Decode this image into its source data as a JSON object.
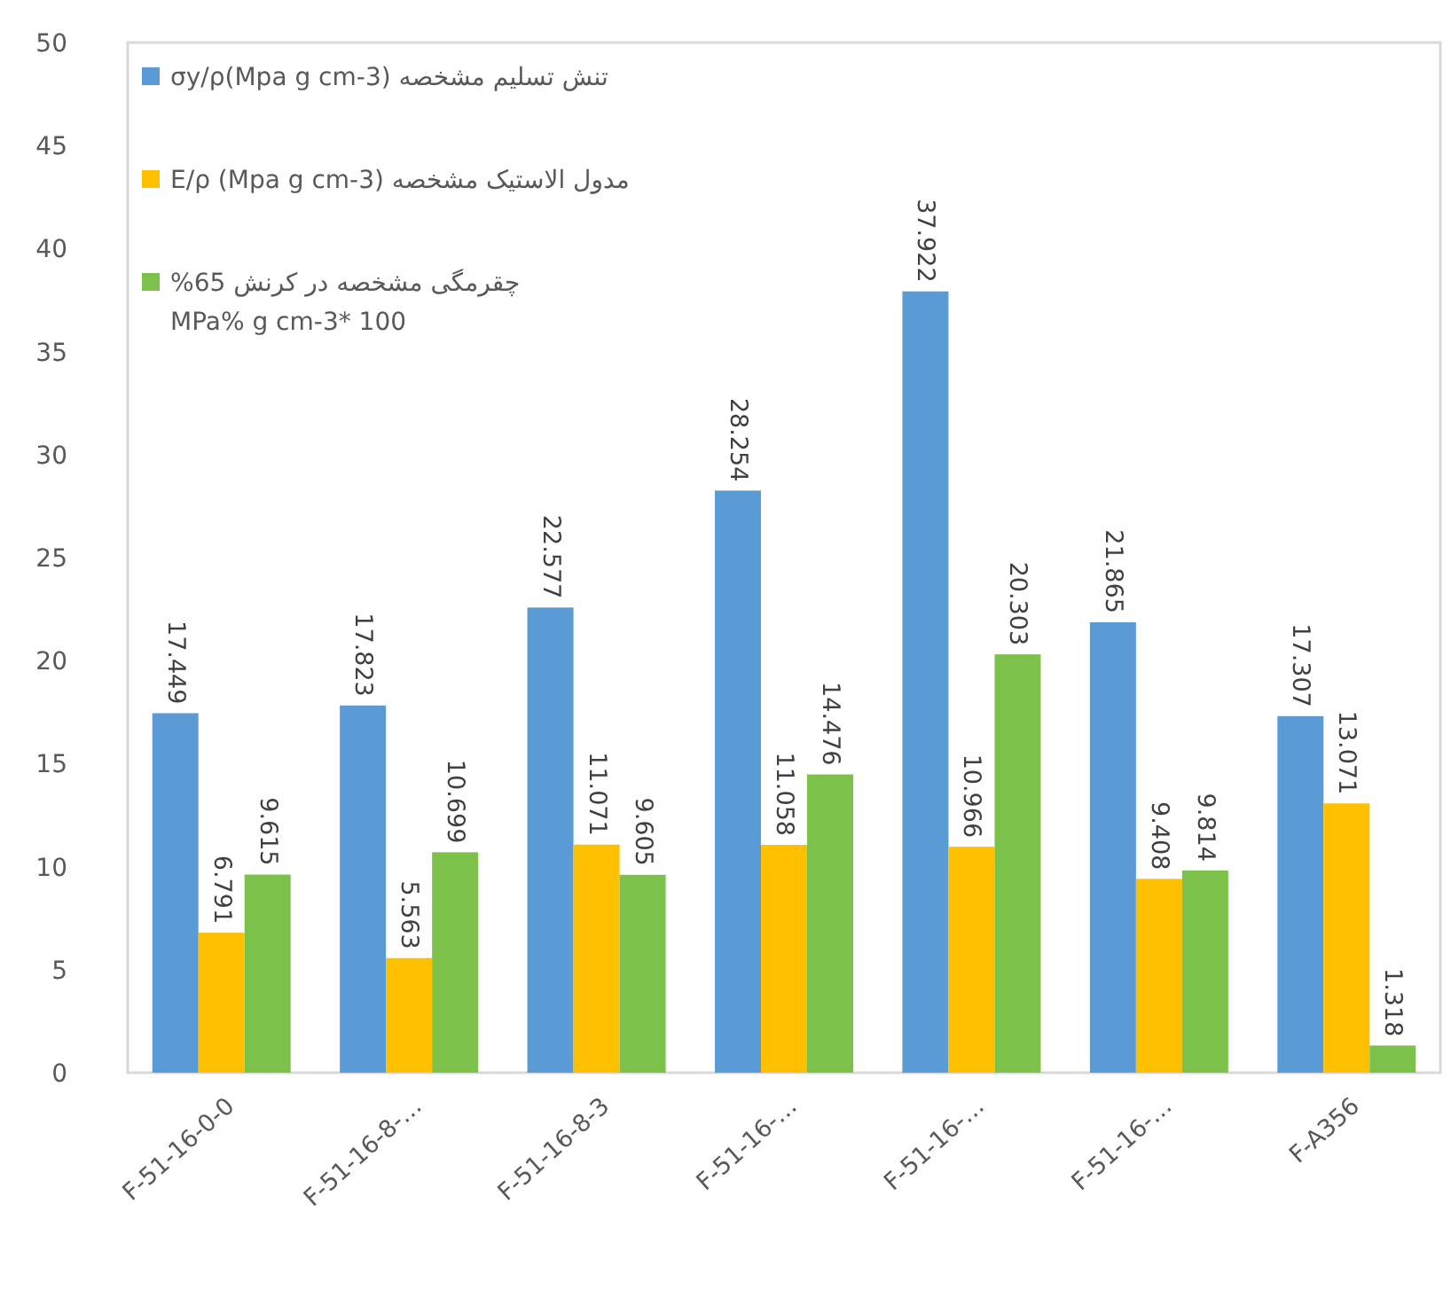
{
  "chart_data": {
    "type": "bar",
    "categories": [
      "F-51-16-0-0",
      "F-51-16-8-…",
      "F-51-16-8-3",
      "F-51-16-…",
      "F-51-16-…",
      "F-51-16-…",
      "F-A356"
    ],
    "series": [
      {
        "name": "تنش تسلیم مشخصه σy/ρ(Mpa g cm-3)",
        "color": "#5b9bd5",
        "values": [
          17.449,
          17.823,
          22.577,
          28.254,
          37.922,
          21.865,
          17.307
        ]
      },
      {
        "name": "مدول الاستیک مشخصه E/ρ (Mpa g cm-3)",
        "color": "#ffc000",
        "values": [
          6.791,
          5.563,
          11.071,
          11.058,
          10.966,
          9.408,
          13.071
        ]
      },
      {
        "name": "چقرمگی مشخصه در کرنش 65%\nMPa% g cm-3* 100",
        "color": "#7cc14a",
        "values": [
          9.615,
          10.699,
          9.605,
          14.476,
          20.303,
          9.814,
          1.318
        ]
      }
    ],
    "ylim": [
      0,
      50
    ],
    "yticks": [
      0,
      5,
      10,
      15,
      20,
      25,
      30,
      35,
      40,
      45,
      50
    ],
    "data_labels": true,
    "legend": "top left",
    "grid": false
  }
}
